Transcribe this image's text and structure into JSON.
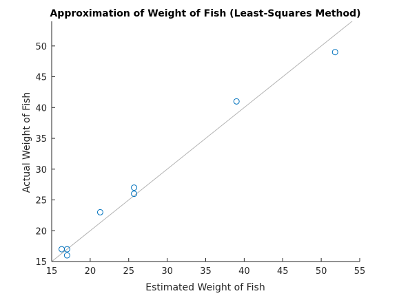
{
  "chart_data": {
    "type": "scatter",
    "title": "Approximation of Weight of Fish (Least-Squares Method)",
    "xlabel": "Estimated Weight of Fish",
    "ylabel": "Actual Weight of Fish",
    "xlim": [
      15,
      55
    ],
    "ylim": [
      15,
      54
    ],
    "xticks": [
      15,
      20,
      25,
      30,
      35,
      40,
      45,
      50,
      55
    ],
    "yticks": [
      15,
      20,
      25,
      30,
      35,
      40,
      45,
      50
    ],
    "grid": false,
    "points": [
      {
        "x": 16.3,
        "y": 17
      },
      {
        "x": 17.0,
        "y": 17
      },
      {
        "x": 17.0,
        "y": 16
      },
      {
        "x": 21.3,
        "y": 23
      },
      {
        "x": 25.7,
        "y": 26
      },
      {
        "x": 25.7,
        "y": 27
      },
      {
        "x": 39.0,
        "y": 41
      },
      {
        "x": 51.8,
        "y": 49
      }
    ],
    "reference_line": {
      "from": [
        15,
        15
      ],
      "to": [
        55,
        55
      ]
    },
    "colors": {
      "marker": "#0072bd",
      "reference_line": "#b3b3b3",
      "axis": "#262626"
    }
  }
}
